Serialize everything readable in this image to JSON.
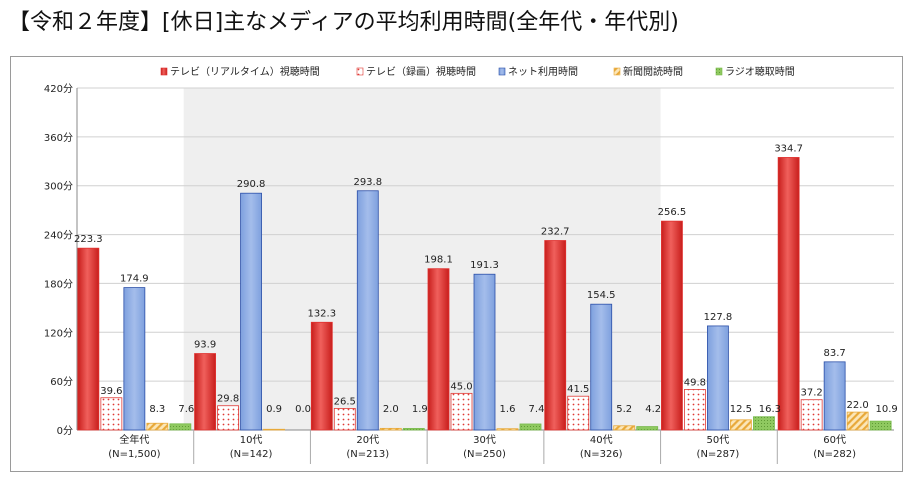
{
  "title": "【令和２年度】[休日]主なメディアの平均利用時間(全年代・年代別)",
  "colors": {
    "tv_realtime": "#e0302e",
    "tv_recorded": "#e03a36",
    "internet": "#5b84cf",
    "newspaper": "#e8a93a",
    "radio": "#77b94a",
    "shade": "#efefef",
    "grid": "#d0d0d0"
  },
  "chart_data": {
    "type": "bar",
    "title": "",
    "xlabel": "",
    "ylabel": "",
    "ylim": [
      0,
      420
    ],
    "yticks": [
      "0分",
      "60分",
      "120分",
      "180分",
      "240分",
      "300分",
      "360分",
      "420分"
    ],
    "ytick_values": [
      0,
      60,
      120,
      180,
      240,
      300,
      360,
      420
    ],
    "legend_position": "top",
    "grid": true,
    "categories": [
      {
        "name": "全年代",
        "n": "(N=1,500)"
      },
      {
        "name": "10代",
        "n": "(N=142)"
      },
      {
        "name": "20代",
        "n": "(N=213)"
      },
      {
        "name": "30代",
        "n": "(N=250)"
      },
      {
        "name": "40代",
        "n": "(N=326)"
      },
      {
        "name": "50代",
        "n": "(N=287)"
      },
      {
        "name": "60代",
        "n": "(N=282)"
      }
    ],
    "series": [
      {
        "name": "テレビ（リアルタイム）視聴時間",
        "key": "tv_realtime",
        "pattern": "solid-gradient",
        "values": [
          223.3,
          93.9,
          132.3,
          198.1,
          232.7,
          256.5,
          334.7
        ],
        "labels": [
          "223.3",
          "93.9",
          "132.3",
          "198.1",
          "232.7",
          "256.5",
          "334.7"
        ]
      },
      {
        "name": "テレビ（録画）視聴時間",
        "key": "tv_recorded",
        "pattern": "dots",
        "values": [
          39.6,
          29.8,
          26.5,
          45.0,
          41.5,
          49.8,
          37.2
        ],
        "labels": [
          "39.6",
          "29.8",
          "26.5",
          "45.0",
          "41.5",
          "49.8",
          "37.2"
        ]
      },
      {
        "name": "ネット利用時間",
        "key": "internet",
        "pattern": "solid",
        "values": [
          174.9,
          290.8,
          293.8,
          191.3,
          154.5,
          127.8,
          83.7
        ],
        "labels": [
          "174.9",
          "290.8",
          "293.8",
          "191.3",
          "154.5",
          "127.8",
          "83.7"
        ]
      },
      {
        "name": "新聞閲読時間",
        "key": "newspaper",
        "pattern": "diagonal",
        "values": [
          8.3,
          0.9,
          2.0,
          1.6,
          5.2,
          12.5,
          22.0
        ],
        "labels": [
          "8.3",
          "0.9",
          "2.0",
          "1.6",
          "5.2",
          "12.5",
          "22.0"
        ]
      },
      {
        "name": "ラジオ聴取時間",
        "key": "radio",
        "pattern": "dense",
        "values": [
          7.6,
          0.0,
          1.9,
          7.4,
          4.2,
          16.3,
          10.9
        ],
        "labels": [
          "7.6",
          "0.0",
          "1.9",
          "7.4",
          "4.2",
          "16.3",
          "10.9"
        ]
      }
    ]
  }
}
